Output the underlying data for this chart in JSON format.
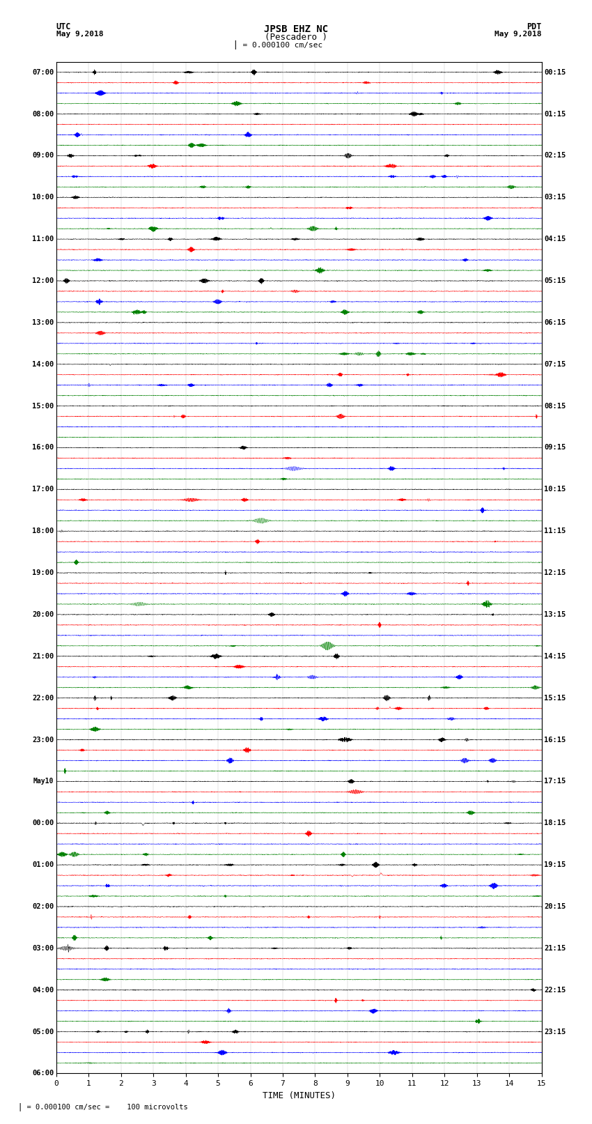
{
  "title_line1": "JPSB EHZ NC",
  "title_line2": "(Pescadero )",
  "scale_text": "= 0.000100 cm/sec",
  "footer_text": "= 0.000100 cm/sec =    100 microvolts",
  "utc_label": "UTC",
  "pdt_label": "PDT",
  "date_left": "May 9,2018",
  "date_right": "May 9,2018",
  "xlabel": "TIME (MINUTES)",
  "xlim": [
    0,
    15
  ],
  "xticks": [
    0,
    1,
    2,
    3,
    4,
    5,
    6,
    7,
    8,
    9,
    10,
    11,
    12,
    13,
    14,
    15
  ],
  "colors": [
    "black",
    "red",
    "blue",
    "green"
  ],
  "bg_color": "#ffffff",
  "fig_width": 8.5,
  "fig_height": 16.13,
  "n_hours": 24,
  "n_colors": 4,
  "left_labels": [
    "07:00",
    "08:00",
    "09:00",
    "10:00",
    "11:00",
    "12:00",
    "13:00",
    "14:00",
    "15:00",
    "16:00",
    "17:00",
    "18:00",
    "19:00",
    "20:00",
    "21:00",
    "22:00",
    "23:00",
    "May10",
    "00:00",
    "01:00",
    "02:00",
    "03:00",
    "04:00",
    "05:00",
    "06:00"
  ],
  "right_labels": [
    "00:15",
    "01:15",
    "02:15",
    "03:15",
    "04:15",
    "05:15",
    "06:15",
    "07:15",
    "08:15",
    "09:15",
    "10:15",
    "11:15",
    "12:15",
    "13:15",
    "14:15",
    "15:15",
    "16:15",
    "17:15",
    "18:15",
    "19:15",
    "20:15",
    "21:15",
    "22:15",
    "23:15"
  ]
}
